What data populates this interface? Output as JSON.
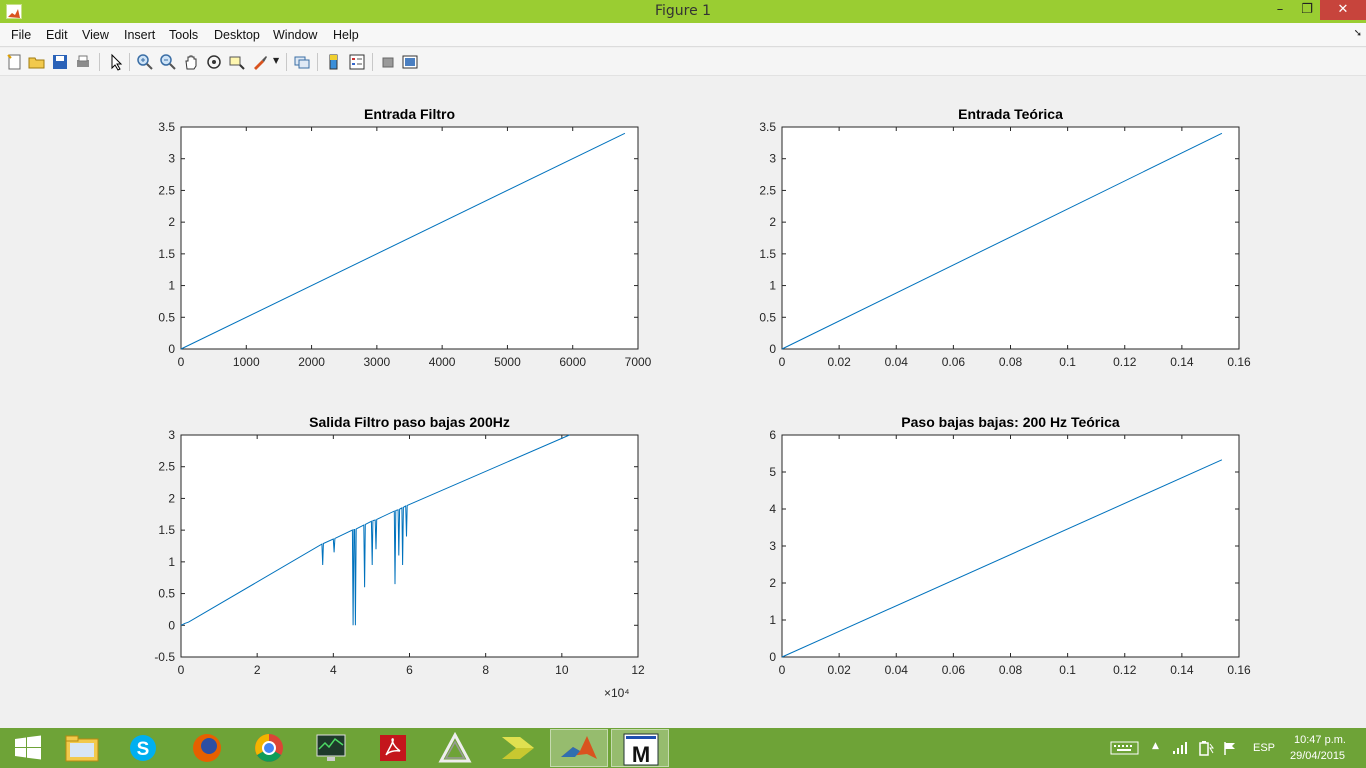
{
  "window": {
    "title": "Figure 1",
    "controls": {
      "minimize": "–",
      "maximize": "❐",
      "close": "✕"
    }
  },
  "menu": {
    "items": [
      "File",
      "Edit",
      "View",
      "Insert",
      "Tools",
      "Desktop",
      "Window",
      "Help"
    ]
  },
  "toolbar": {
    "icons": [
      "new-figure-icon",
      "open-file-icon",
      "save-icon",
      "print-icon",
      "edit-plot-arrow-icon",
      "zoom-in-icon",
      "zoom-out-icon",
      "pan-hand-icon",
      "rotate-3d-icon",
      "data-cursor-icon",
      "brush-icon",
      "link-plot-icon",
      "insert-colorbar-icon",
      "insert-legend-icon",
      "hide-plot-tools-icon",
      "show-plot-tools-icon"
    ]
  },
  "chart_data": [
    {
      "type": "line",
      "title": "Entrada Filtro",
      "xlabel": "",
      "ylabel": "",
      "xlim": [
        0,
        7000
      ],
      "ylim": [
        0,
        3.5
      ],
      "xticks": [
        "0",
        "1000",
        "2000",
        "3000",
        "4000",
        "5000",
        "6000",
        "7000"
      ],
      "yticks": [
        "0",
        "0.5",
        "1",
        "1.5",
        "2",
        "2.5",
        "3",
        "3.5"
      ],
      "series": [
        {
          "x": [
            0,
            6800
          ],
          "y": [
            0,
            3.4
          ]
        }
      ],
      "exponent_label": "",
      "grid": false
    },
    {
      "type": "line",
      "title": "Entrada Teórica",
      "xlabel": "",
      "ylabel": "",
      "xlim": [
        0,
        0.16
      ],
      "ylim": [
        0,
        3.5
      ],
      "xticks": [
        "0",
        "0.02",
        "0.04",
        "0.06",
        "0.08",
        "0.1",
        "0.12",
        "0.14",
        "0.16"
      ],
      "yticks": [
        "0",
        "0.5",
        "1",
        "1.5",
        "2",
        "2.5",
        "3",
        "3.5"
      ],
      "series": [
        {
          "x": [
            0,
            0.154
          ],
          "y": [
            0,
            3.4
          ]
        }
      ],
      "exponent_label": "",
      "grid": false
    },
    {
      "type": "line",
      "title": "Salida Filtro paso bajas 200Hz",
      "xlabel": "",
      "ylabel": "",
      "xlim": [
        0,
        12
      ],
      "ylim": [
        -0.5,
        3
      ],
      "xticks": [
        "0",
        "2",
        "4",
        "6",
        "8",
        "10",
        "12"
      ],
      "yticks": [
        "-0.5",
        "0",
        "0.5",
        "1",
        "1.5",
        "2",
        "2.5",
        "3"
      ],
      "series": [
        {
          "x": [
            0,
            0.1,
            0.2,
            3.7,
            3.72,
            3.74,
            4.0,
            4.02,
            4.04,
            4.5,
            4.52,
            4.54,
            4.56,
            4.58,
            4.6,
            4.8,
            4.82,
            4.84,
            5.0,
            5.02,
            5.04,
            5.1,
            5.12,
            5.14,
            5.6,
            5.62,
            5.64,
            5.7,
            5.72,
            5.74,
            5.8,
            5.82,
            5.84,
            5.9,
            5.92,
            5.94,
            10.2
          ],
          "y": [
            0,
            0.03,
            0.05,
            1.28,
            0.95,
            1.29,
            1.36,
            1.15,
            1.37,
            1.5,
            0.0,
            1.51,
            1.51,
            0.0,
            1.52,
            1.58,
            0.6,
            1.59,
            1.64,
            0.95,
            1.65,
            1.66,
            1.2,
            1.67,
            1.8,
            0.65,
            1.81,
            1.82,
            1.1,
            1.83,
            1.85,
            0.95,
            1.86,
            1.88,
            1.4,
            1.89,
            3.0
          ]
        }
      ],
      "exponent_label": "×10⁴",
      "grid": false
    },
    {
      "type": "line",
      "title": "Paso bajas bajas: 200 Hz Teórica",
      "xlabel": "",
      "ylabel": "",
      "xlim": [
        0,
        0.16
      ],
      "ylim": [
        0,
        6
      ],
      "xticks": [
        "0",
        "0.02",
        "0.04",
        "0.06",
        "0.08",
        "0.1",
        "0.12",
        "0.14",
        "0.16"
      ],
      "yticks": [
        "0",
        "1",
        "2",
        "3",
        "4",
        "5",
        "6"
      ],
      "series": [
        {
          "x": [
            0,
            0.154
          ],
          "y": [
            0,
            5.33
          ]
        }
      ],
      "exponent_label": "",
      "grid": false
    }
  ],
  "taskbar": {
    "apps": [
      "start-icon",
      "file-explorer-icon",
      "skype-icon",
      "firefox-icon",
      "chrome-icon",
      "task-manager-icon",
      "acrobat-icon",
      "prism-icon",
      "arrow-app-icon",
      "matlab-icon",
      "m-app-icon"
    ],
    "tray": {
      "lang": "ESP",
      "time": "10:47 p.m.",
      "date": "29/04/2015"
    }
  },
  "colors": {
    "titlebar": "#9acd32",
    "taskbar": "#6ea337",
    "line": "#0072bd",
    "axes": "#262626"
  }
}
